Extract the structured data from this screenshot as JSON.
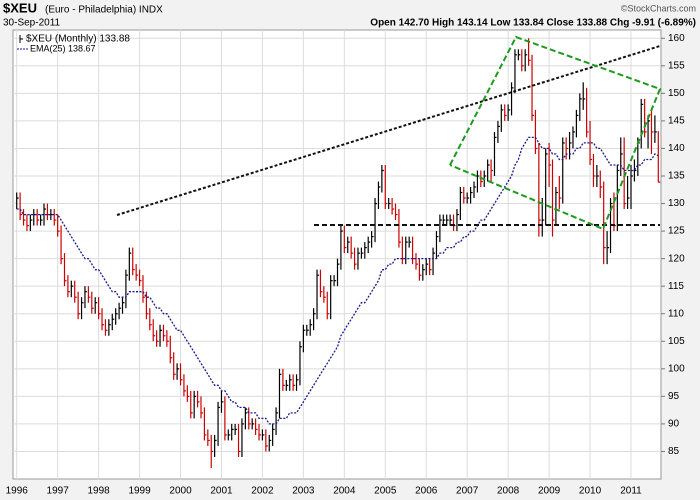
{
  "chart_data": {
    "type": "ohlc",
    "title": "$XEU",
    "subtitle": "(Euro - Philadelphia) INDX",
    "date": "30-Sep-2011",
    "quote": "Open 142.70 High 143.14 Low 133.84 Close 133.88 Chg -9.91 (-6.89%)",
    "watermark": "©StockCharts.com",
    "categories": [
      "1996",
      null,
      null,
      null,
      null,
      null,
      null,
      null,
      null,
      null,
      null,
      null,
      "1997",
      null,
      null,
      null,
      null,
      null,
      null,
      null,
      null,
      null,
      null,
      null,
      "1998",
      null,
      null,
      null,
      null,
      null,
      null,
      null,
      null,
      null,
      null,
      null,
      "1999",
      null,
      null,
      null,
      null,
      null,
      null,
      null,
      null,
      null,
      null,
      null,
      "2000",
      null,
      null,
      null,
      null,
      null,
      null,
      null,
      null,
      null,
      null,
      null,
      "2001",
      null,
      null,
      null,
      null,
      null,
      null,
      null,
      null,
      null,
      null,
      null,
      "2002",
      null,
      null,
      null,
      null,
      null,
      null,
      null,
      null,
      null,
      null,
      null,
      "2003",
      null,
      null,
      null,
      null,
      null,
      null,
      null,
      null,
      null,
      null,
      null,
      "2004",
      null,
      null,
      null,
      null,
      null,
      null,
      null,
      null,
      null,
      null,
      null,
      "2005",
      null,
      null,
      null,
      null,
      null,
      null,
      null,
      null,
      null,
      null,
      null,
      "2006",
      null,
      null,
      null,
      null,
      null,
      null,
      null,
      null,
      null,
      null,
      null,
      "2007",
      null,
      null,
      null,
      null,
      null,
      null,
      null,
      null,
      null,
      null,
      null,
      "2008",
      null,
      null,
      null,
      null,
      null,
      null,
      null,
      null,
      null,
      null,
      null,
      "2009",
      null,
      null,
      null,
      null,
      null,
      null,
      null,
      null,
      null,
      null,
      null,
      "2010",
      null,
      null,
      null,
      null,
      null,
      null,
      null,
      null,
      null,
      null,
      null,
      "2011",
      null,
      null,
      null,
      null,
      null,
      null,
      null,
      null
    ],
    "series": [
      {
        "name": "$XEU (Monthly) 133.88",
        "up_color": "#000000",
        "down_color": "#cc0000",
        "high": [
          132,
          132,
          129,
          128,
          128,
          129,
          129,
          128,
          130,
          130,
          129,
          129,
          128,
          126,
          121,
          117,
          116,
          116,
          114,
          113,
          115,
          115,
          114,
          113,
          113,
          111,
          109,
          109,
          110,
          111,
          112,
          113,
          118,
          122,
          122,
          119,
          118,
          117,
          114,
          111,
          109,
          107,
          108,
          108,
          107,
          106,
          103,
          101,
          101,
          99,
          97,
          96,
          96,
          96,
          95,
          93,
          89,
          88,
          88,
          94,
          96,
          95,
          89,
          90,
          90,
          90,
          91,
          93,
          93,
          91,
          91,
          90,
          89,
          89,
          88,
          90,
          93,
          100,
          100,
          98,
          99,
          99,
          99,
          105,
          108,
          108,
          109,
          111,
          118,
          118,
          115,
          114,
          117,
          117,
          120,
          126,
          126,
          124,
          124,
          122,
          122,
          122,
          123,
          124,
          125,
          131,
          134,
          137,
          137,
          131,
          131,
          130,
          129,
          124,
          124,
          124,
          124,
          121,
          120,
          119,
          120,
          120,
          122,
          125,
          128,
          128,
          128,
          128,
          128,
          129,
          133,
          133,
          132,
          133,
          134,
          136,
          136,
          136,
          138,
          138,
          143,
          145,
          148,
          148,
          148,
          152,
          158,
          158,
          158,
          158,
          160,
          157,
          147,
          141,
          131,
          140,
          141,
          138,
          133,
          135,
          142,
          142,
          143,
          144,
          147,
          150,
          152,
          151,
          145,
          139,
          137,
          136,
          134,
          125,
          131,
          132,
          137,
          142,
          142,
          135,
          137,
          138,
          142,
          149,
          149,
          146,
          147,
          146,
          143.14
        ],
        "low": [
          129,
          127,
          126,
          125,
          125,
          126,
          126,
          126,
          126,
          127,
          127,
          126,
          124,
          119,
          115,
          113,
          113,
          112,
          109,
          109,
          111,
          112,
          110,
          110,
          109,
          107,
          106,
          106,
          107,
          108,
          109,
          110,
          111,
          116,
          117,
          116,
          115,
          112,
          109,
          107,
          105,
          104,
          104,
          105,
          104,
          101,
          98,
          98,
          97,
          95,
          94,
          91,
          91,
          93,
          91,
          87,
          86,
          82,
          84,
          86,
          92,
          87,
          87,
          87,
          88,
          84,
          84,
          89,
          89,
          89,
          88,
          87,
          87,
          85,
          85,
          86,
          88,
          91,
          96,
          96,
          96,
          96,
          96,
          97,
          103,
          106,
          106,
          107,
          109,
          113,
          112,
          109,
          109,
          115,
          115,
          118,
          121,
          121,
          120,
          118,
          118,
          120,
          120,
          121,
          122,
          123,
          129,
          132,
          129,
          129,
          128,
          127,
          122,
          119,
          119,
          122,
          119,
          118,
          116,
          116,
          117,
          117,
          117,
          120,
          123,
          126,
          126,
          126,
          125,
          125,
          127,
          130,
          130,
          130,
          131,
          132,
          133,
          133,
          134,
          134,
          135,
          141,
          143,
          145,
          145,
          146,
          150,
          156,
          154,
          154,
          155,
          145,
          139,
          124,
          124,
          126,
          133,
          124,
          126,
          129,
          130,
          138,
          138,
          140,
          142,
          145,
          147,
          142,
          137,
          133,
          133,
          131,
          119,
          119,
          121,
          125,
          125,
          135,
          129,
          129,
          129,
          134,
          135,
          140,
          142,
          140,
          139,
          141,
          133.84
        ],
        "close": [
          131,
          128,
          127,
          126,
          127,
          128,
          127,
          127,
          129,
          128,
          128,
          127,
          125,
          120,
          116,
          114,
          115,
          113,
          110,
          112,
          114,
          113,
          111,
          112,
          110,
          108,
          107,
          108,
          109,
          110,
          111,
          112,
          117,
          121,
          118,
          117,
          116,
          113,
          110,
          108,
          106,
          105,
          107,
          106,
          105,
          102,
          99,
          100,
          98,
          96,
          95,
          92,
          95,
          94,
          92,
          88,
          87,
          85,
          87,
          93,
          94,
          88,
          88,
          89,
          89,
          85,
          90,
          92,
          90,
          90,
          89,
          88,
          88,
          86,
          87,
          89,
          92,
          99,
          97,
          97,
          98,
          97,
          98,
          104,
          107,
          107,
          108,
          110,
          117,
          114,
          113,
          110,
          116,
          116,
          119,
          125,
          122,
          123,
          121,
          119,
          121,
          121,
          122,
          123,
          124,
          130,
          133,
          136,
          130,
          130,
          129,
          128,
          123,
          120,
          123,
          123,
          120,
          119,
          117,
          118,
          119,
          118,
          121,
          124,
          127,
          127,
          127,
          127,
          126,
          128,
          132,
          131,
          131,
          132,
          133,
          135,
          134,
          135,
          137,
          136,
          142,
          144,
          147,
          146,
          147,
          151,
          157,
          157,
          155,
          157,
          156,
          146,
          140,
          127,
          127,
          139,
          137,
          127,
          132,
          131,
          141,
          140,
          141,
          143,
          146,
          149,
          149,
          143,
          138,
          135,
          135,
          133,
          122,
          122,
          130,
          126,
          136,
          139,
          130,
          131,
          135,
          136,
          141,
          148,
          143,
          145,
          143,
          143,
          133.88
        ]
      },
      {
        "name": "EMA(25) 138.67",
        "color": "#1a1a8c",
        "values": [
          129,
          129,
          128,
          128,
          128,
          128,
          128,
          128,
          128,
          128,
          128,
          128,
          128,
          127,
          126,
          125,
          124,
          123,
          122,
          121,
          120,
          120,
          119,
          118,
          118,
          117,
          116,
          115,
          114,
          114,
          113,
          113,
          113,
          114,
          114,
          114,
          114,
          114,
          113,
          113,
          112,
          111,
          111,
          110,
          110,
          109,
          108,
          107,
          107,
          106,
          105,
          104,
          103,
          102,
          101,
          100,
          99,
          98,
          97,
          97,
          96,
          96,
          95,
          94,
          94,
          93,
          93,
          93,
          92,
          92,
          92,
          91,
          91,
          91,
          90,
          90,
          90,
          91,
          91,
          91,
          92,
          92,
          92,
          93,
          94,
          95,
          96,
          97,
          98,
          99,
          100,
          101,
          102,
          103,
          104,
          106,
          107,
          108,
          109,
          110,
          111,
          112,
          112,
          113,
          114,
          115,
          116,
          118,
          118,
          119,
          119,
          120,
          120,
          120,
          120,
          120,
          120,
          120,
          120,
          120,
          120,
          120,
          120,
          120,
          121,
          121,
          122,
          122,
          122,
          123,
          123,
          124,
          124,
          125,
          125,
          126,
          127,
          127,
          128,
          129,
          130,
          131,
          132,
          133,
          134,
          135,
          137,
          138,
          140,
          141,
          142,
          142,
          142,
          141,
          140,
          140,
          140,
          139,
          139,
          138,
          138,
          139,
          139,
          139,
          140,
          140,
          141,
          141,
          141,
          141,
          140,
          140,
          139,
          138,
          137,
          137,
          137,
          137,
          136,
          136,
          136,
          136,
          137,
          137,
          138,
          138,
          138,
          139,
          138.67
        ]
      }
    ],
    "ylim": [
      80,
      161.5
    ],
    "yticks": [
      85,
      90,
      95,
      100,
      105,
      110,
      115,
      120,
      125,
      130,
      135,
      140,
      145,
      150,
      155,
      160
    ],
    "grid": true
  }
}
